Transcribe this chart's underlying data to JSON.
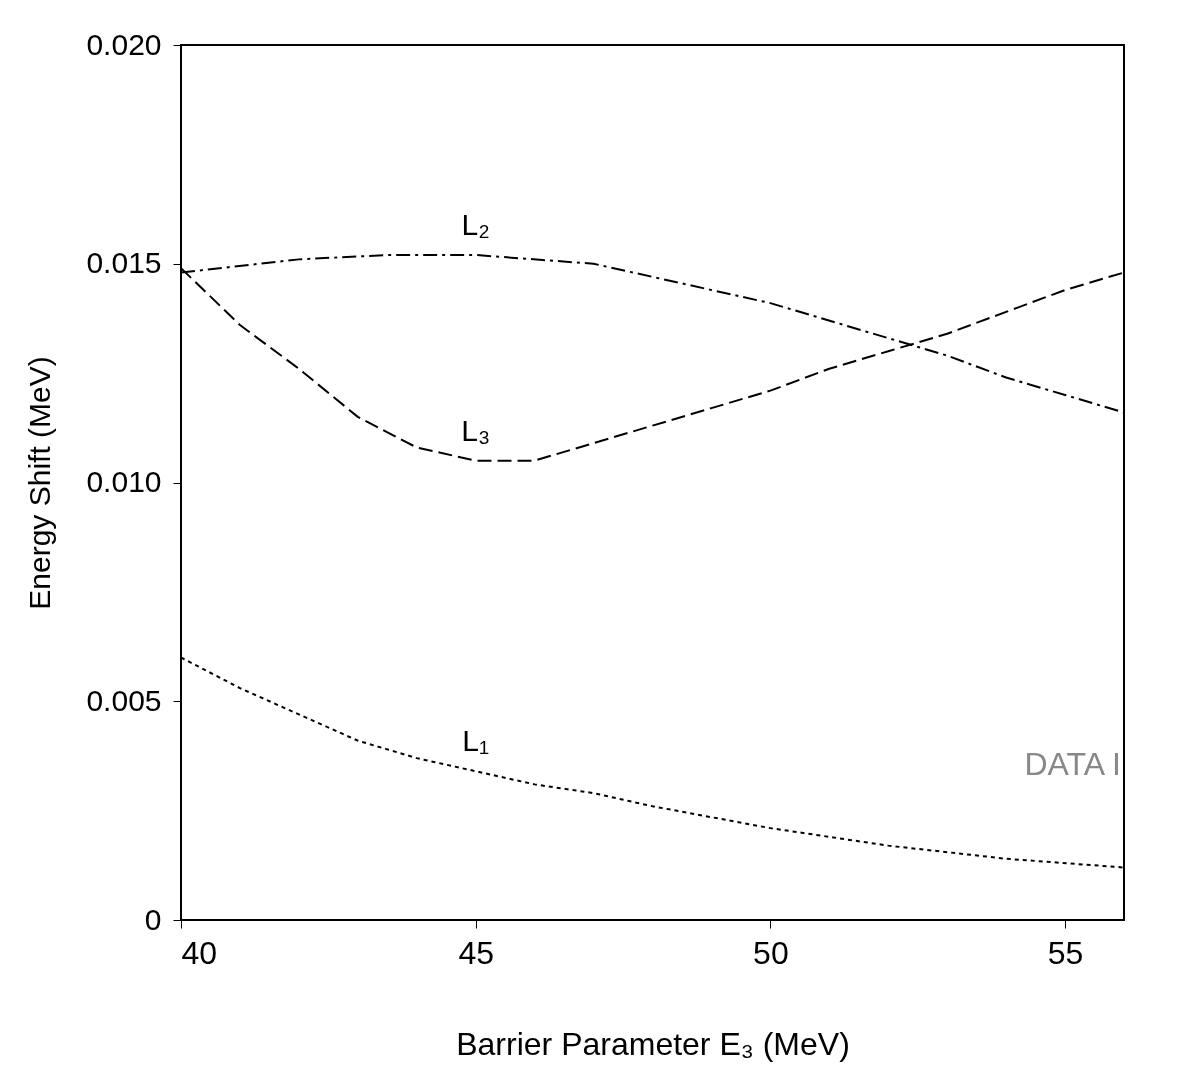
{
  "chart_data": {
    "type": "line",
    "xlabel": "Barrier Parameter E₃ (MeV)",
    "ylabel": "Energy Shift (MeV)",
    "xlim": [
      40,
      56
    ],
    "xticks": [
      40,
      45,
      50,
      55
    ],
    "ylim": [
      0,
      0.02
    ],
    "yticks": [
      {
        "value": 0,
        "label": "0"
      },
      {
        "value": 0.005,
        "label": "0.005"
      },
      {
        "value": 0.01,
        "label": "0.010"
      },
      {
        "value": 0.015,
        "label": "0.015"
      },
      {
        "value": 0.02,
        "label": "0.020"
      }
    ],
    "grid": false,
    "legend": false,
    "marker": "none",
    "series": [
      {
        "name": "L₁",
        "color": "#000000",
        "line_style": "dotted",
        "x": [
          40,
          41,
          42,
          43,
          44,
          45,
          46,
          47,
          48,
          50,
          52,
          54,
          56
        ],
        "values": [
          0.006,
          0.0053,
          0.0047,
          0.0041,
          0.0037,
          0.0034,
          0.0031,
          0.0029,
          0.0026,
          0.0021,
          0.0017,
          0.0014,
          0.0012
        ]
      },
      {
        "name": "L₂",
        "color": "#000000",
        "line_style": "dashdot",
        "x": [
          40,
          42,
          43.5,
          45,
          47,
          48,
          50,
          52,
          53,
          54,
          55,
          56
        ],
        "values": [
          0.0148,
          0.0151,
          0.0152,
          0.0152,
          0.015,
          0.0147,
          0.0141,
          0.0133,
          0.0129,
          0.0124,
          0.012,
          0.0116
        ]
      },
      {
        "name": "L₃",
        "color": "#000000",
        "line_style": "dashed",
        "x": [
          40,
          41,
          42,
          43,
          44,
          45,
          46,
          47,
          48,
          49,
          50,
          51,
          52,
          53,
          54,
          55,
          56
        ],
        "values": [
          0.0149,
          0.0136,
          0.0126,
          0.0115,
          0.0108,
          0.0105,
          0.0105,
          0.0109,
          0.0113,
          0.0117,
          0.0121,
          0.0126,
          0.013,
          0.0134,
          0.0139,
          0.0144,
          0.0148
        ]
      }
    ],
    "annotations": [
      "DATA I"
    ]
  }
}
